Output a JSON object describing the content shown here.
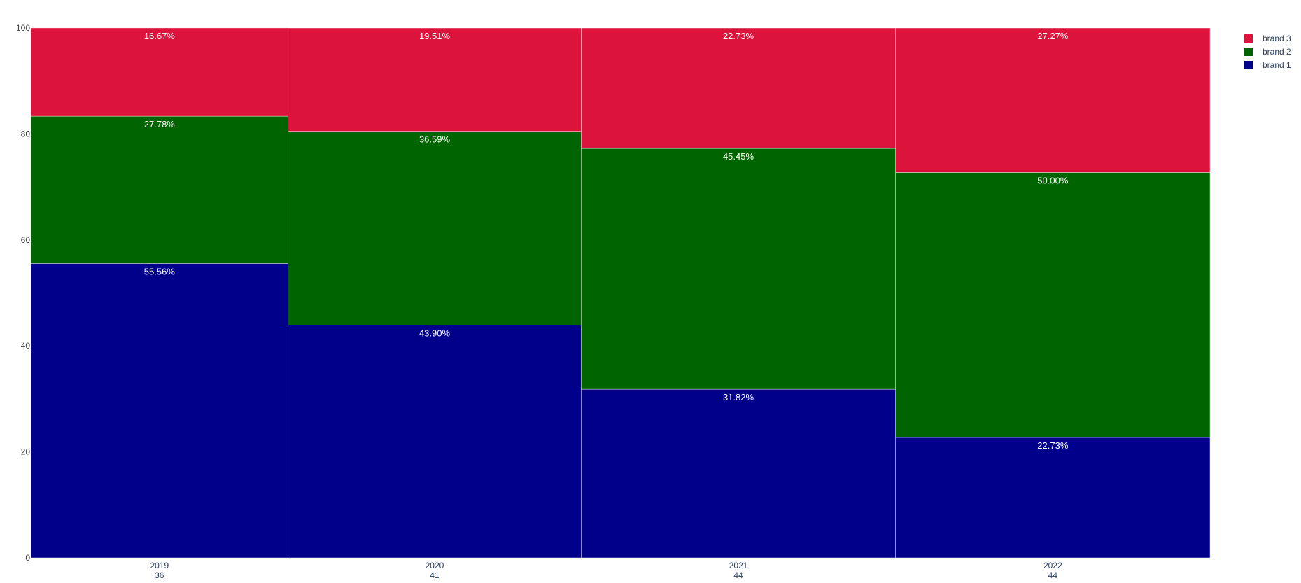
{
  "chart_data": {
    "type": "bar",
    "subtype": "marimekko",
    "title": "",
    "xlabel": "",
    "ylabel": "",
    "ylim": [
      0,
      100
    ],
    "yticks": [
      0,
      20,
      40,
      60,
      80,
      100
    ],
    "categories": [
      "2019",
      "2020",
      "2021",
      "2022"
    ],
    "category_totals": [
      "36",
      "41",
      "44",
      "44"
    ],
    "widths": [
      36,
      41,
      44,
      44
    ],
    "series": [
      {
        "name": "brand 1",
        "color": "#00008b",
        "values": [
          55.56,
          43.9,
          31.82,
          22.73
        ],
        "labels": [
          "55.56%",
          "43.90%",
          "31.82%",
          "22.73%"
        ]
      },
      {
        "name": "brand 2",
        "color": "#006400",
        "values": [
          27.78,
          36.59,
          45.45,
          50.0
        ],
        "labels": [
          "27.78%",
          "36.59%",
          "45.45%",
          "50.00%"
        ]
      },
      {
        "name": "brand 3",
        "color": "#dc143c",
        "values": [
          16.67,
          19.51,
          22.73,
          27.27
        ],
        "labels": [
          "16.67%",
          "19.51%",
          "22.73%",
          "27.27%"
        ]
      }
    ],
    "legend": {
      "position": "top-right",
      "order": [
        "brand 3",
        "brand 2",
        "brand 1"
      ]
    },
    "grid": false
  }
}
